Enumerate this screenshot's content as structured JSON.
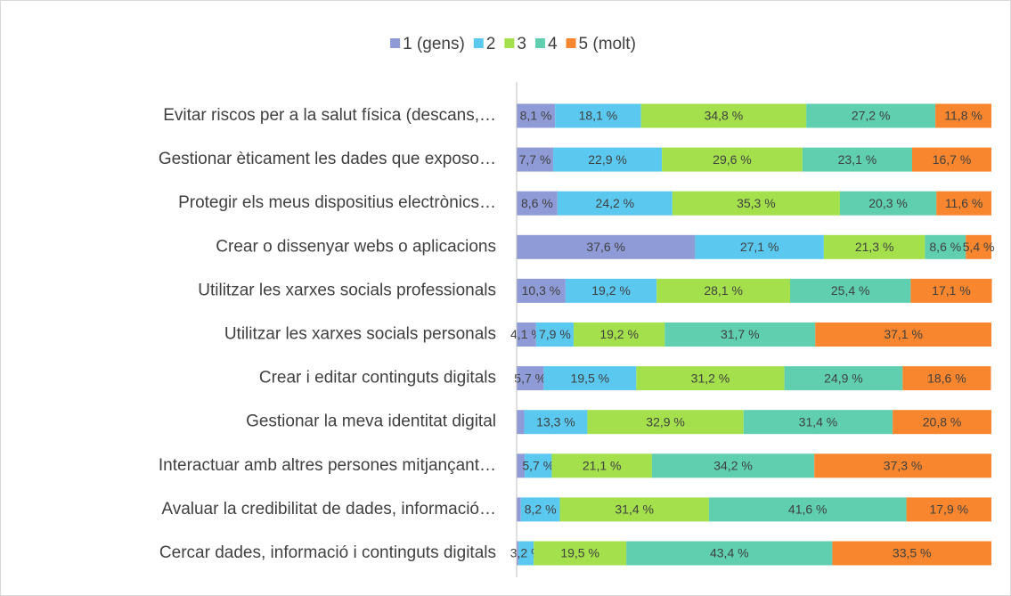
{
  "chart_data": {
    "type": "stacked_bar_horizontal",
    "categories": [
      "Evitar riscos per a la salut física (descans,…",
      "Gestionar èticament les dades que exposo…",
      "Protegir els meus dispositius electrònics…",
      "Crear o dissenyar webs o aplicacions",
      "Utilitzar les xarxes socials professionals",
      "Utilitzar les xarxes socials personals",
      "Crear i editar continguts digitals",
      "Gestionar la meva identitat digital",
      "Interactuar amb altres persones mitjançant…",
      "Avaluar la credibilitat de dades, informació…",
      "Cercar dades, informació i continguts digitals"
    ],
    "series": [
      {
        "name": "1 (gens)",
        "color": "#8f9bd6",
        "values": [
          8.1,
          7.7,
          8.6,
          37.6,
          10.3,
          4.1,
          5.7,
          1.6,
          1.7,
          0.9,
          0.4
        ],
        "value_labels": [
          "8,1 %",
          "7,7 %",
          "8,6 %",
          "37,6 %",
          "10,3 %",
          "4,1 %",
          "5,7 %",
          null,
          null,
          null,
          null
        ]
      },
      {
        "name": "2",
        "color": "#5bc8f0",
        "values": [
          18.1,
          22.9,
          24.2,
          27.1,
          19.2,
          7.9,
          19.5,
          13.3,
          5.7,
          8.2,
          3.2
        ],
        "value_labels": [
          "18,1 %",
          "22,9 %",
          "24,2 %",
          "27,1 %",
          "19,2 %",
          "7,9 %",
          "19,5 %",
          "13,3 %",
          "5,7 %",
          "8,2 %",
          "3,2 %"
        ]
      },
      {
        "name": "3",
        "color": "#a4e04c",
        "values": [
          34.8,
          29.6,
          35.3,
          21.3,
          28.1,
          19.2,
          31.2,
          32.9,
          21.1,
          31.4,
          19.5
        ],
        "value_labels": [
          "34,8 %",
          "29,6 %",
          "35,3 %",
          "21,3 %",
          "28,1 %",
          "19,2 %",
          "31,2 %",
          "32,9 %",
          "21,1 %",
          "31,4 %",
          "19,5 %"
        ]
      },
      {
        "name": "4",
        "color": "#5fcfb0",
        "values": [
          27.2,
          23.1,
          20.3,
          8.6,
          25.4,
          31.7,
          24.9,
          31.4,
          34.2,
          41.6,
          43.4
        ],
        "value_labels": [
          "27,2 %",
          "23,1 %",
          "20,3 %",
          "8,6 %",
          "25,4 %",
          "31,7 %",
          "24,9 %",
          "31,4 %",
          "34,2 %",
          "41,6 %",
          "43,4 %"
        ]
      },
      {
        "name": "5 (molt)",
        "color": "#f7862e",
        "values": [
          11.8,
          16.7,
          11.6,
          5.4,
          17.1,
          37.1,
          18.6,
          20.8,
          37.3,
          17.9,
          33.5
        ],
        "value_labels": [
          "11,8 %",
          "16,7 %",
          "11,6 %",
          "5,4 %",
          "17,1 %",
          "37,1 %",
          "18,6 %",
          "20,8 %",
          "37,3 %",
          "17,9 %",
          "33,5 %"
        ]
      }
    ],
    "xlim": [
      0,
      100
    ],
    "legend": "top"
  }
}
